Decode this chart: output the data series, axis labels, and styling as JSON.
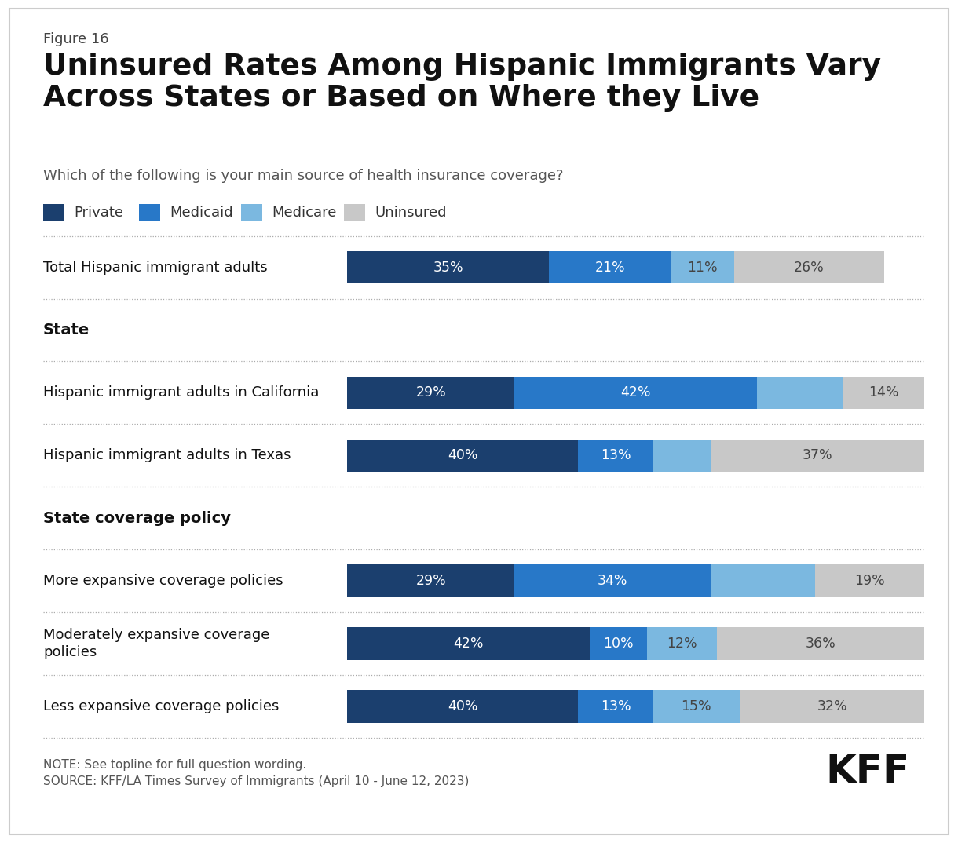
{
  "figure_label": "Figure 16",
  "title": "Uninsured Rates Among Hispanic Immigrants Vary\nAcross States or Based on Where they Live",
  "subtitle": "Which of the following is your main source of health insurance coverage?",
  "legend_labels": [
    "Private",
    "Medicaid",
    "Medicare",
    "Uninsured"
  ],
  "colors": {
    "private": "#1B3F6E",
    "medicaid": "#2878C8",
    "medicare": "#7BB8E0",
    "uninsured": "#C8C8C8"
  },
  "data_rows": [
    {
      "label": "Total Hispanic immigrant adults",
      "values": [
        35,
        21,
        11,
        26
      ],
      "y": 0
    },
    {
      "label": "Hispanic immigrant adults in California",
      "values": [
        29,
        42,
        15,
        14
      ],
      "y": 2
    },
    {
      "label": "Hispanic immigrant adults in Texas",
      "values": [
        40,
        13,
        10,
        37
      ],
      "y": 3
    },
    {
      "label": "More expansive coverage policies",
      "values": [
        29,
        34,
        18,
        19
      ],
      "y": 5
    },
    {
      "label": "Moderately expansive coverage\npolicies",
      "values": [
        42,
        10,
        12,
        36
      ],
      "y": 6
    },
    {
      "label": "Less expansive coverage policies",
      "values": [
        40,
        13,
        15,
        32
      ],
      "y": 7
    }
  ],
  "section_headers": [
    {
      "label": "State",
      "y": 1
    },
    {
      "label": "State coverage policy",
      "y": 4
    }
  ],
  "show_labels": {
    "0": [
      true,
      true,
      true,
      true
    ],
    "2": [
      true,
      true,
      false,
      true
    ],
    "3": [
      true,
      true,
      false,
      true
    ],
    "5": [
      true,
      true,
      false,
      true
    ],
    "6": [
      true,
      true,
      true,
      true
    ],
    "7": [
      true,
      true,
      true,
      true
    ]
  },
  "note": "NOTE: See topline for full question wording.\nSOURCE: KFF/LA Times Survey of Immigrants (April 10 - June 12, 2023)",
  "background_color": "#FFFFFF",
  "border_color": "#CCCCCC"
}
